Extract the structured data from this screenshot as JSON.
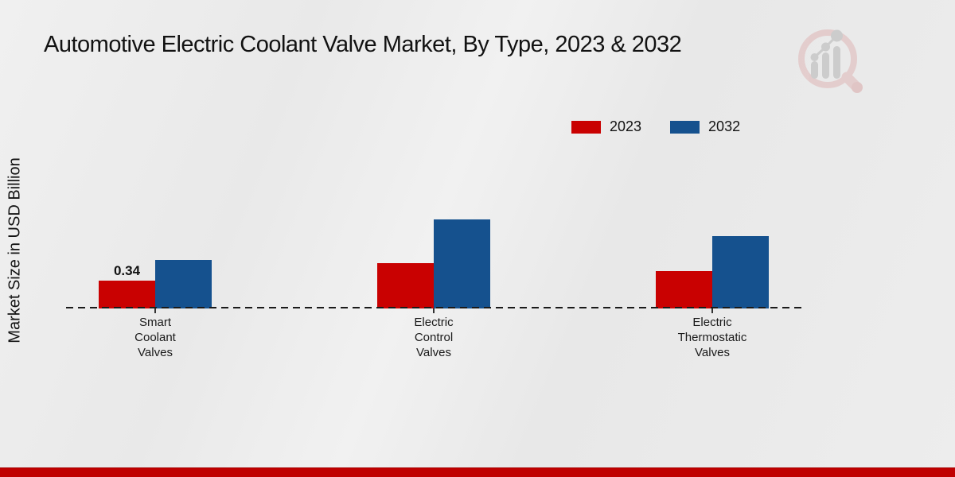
{
  "page": {
    "title": "Automotive Electric Coolant Valve Market, By Type, 2023 & 2032",
    "ylabel": "Market Size in USD Billion",
    "logo_icon": "magnifier-growth-bar-chart-logo"
  },
  "colors": {
    "series_2023": "#c90101",
    "series_2032": "#15518e",
    "footer_bar": "#c00000",
    "baseline": "#1a1a1a",
    "text": "#121212",
    "logo_ring": "#dfb6b6",
    "logo_bars": "#cccccc"
  },
  "legend": {
    "items": [
      {
        "label": "2023",
        "color": "#c90101"
      },
      {
        "label": "2032",
        "color": "#15518e"
      }
    ]
  },
  "chart_data": {
    "type": "bar",
    "title": "Automotive Electric Coolant Valve Market, By Type, 2023 & 2032",
    "xlabel": "",
    "ylabel": "Market Size in USD Billion",
    "categories": [
      "Smart Coolant Valves",
      "Electric Control Valves",
      "Electric Thermostatic Valves"
    ],
    "categories_multiline": [
      "Smart\nCoolant\nValves",
      "Electric\nControl\nValves",
      "Electric\nThermostatic\nValves"
    ],
    "series": [
      {
        "name": "2023",
        "color": "#c90101",
        "values": [
          0.34,
          0.55,
          0.46
        ],
        "data_labels": [
          "0.34",
          "",
          ""
        ]
      },
      {
        "name": "2032",
        "color": "#15518e",
        "values": [
          0.59,
          1.09,
          0.88
        ],
        "data_labels": [
          "",
          "",
          ""
        ]
      }
    ],
    "ylim": [
      0,
      1.2
    ],
    "baseline_value": 0,
    "grid": false,
    "legend_position": "top-right",
    "data_label_shown": "only first 2023 bar"
  }
}
